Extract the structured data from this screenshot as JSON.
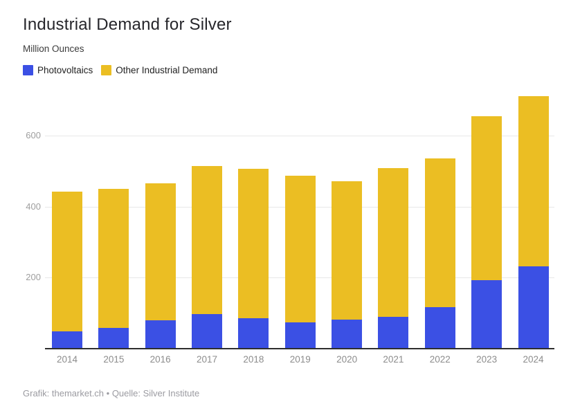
{
  "header": {
    "title": "Industrial Demand for Silver",
    "subtitle": "Million Ounces"
  },
  "legend": {
    "items": [
      {
        "label": "Photovoltaics",
        "color": "#3B50E4"
      },
      {
        "label": "Other Industrial Demand",
        "color": "#EBBE23"
      }
    ]
  },
  "chart_data": {
    "type": "bar",
    "stacked": true,
    "title": "Industrial Demand for Silver",
    "ylabel": "Million Ounces",
    "xlabel": "",
    "categories": [
      "2014",
      "2015",
      "2016",
      "2017",
      "2018",
      "2019",
      "2020",
      "2021",
      "2022",
      "2023",
      "2024"
    ],
    "series": [
      {
        "name": "Photovoltaics",
        "color": "#3B50E4",
        "values": [
          48,
          58,
          80,
          98,
          86,
          74,
          81,
          89,
          116,
          193,
          231
        ]
      },
      {
        "name": "Other Industrial Demand",
        "color": "#EBBE23",
        "values": [
          394,
          392,
          386,
          416,
          420,
          413,
          390,
          420,
          420,
          461,
          480
        ]
      }
    ],
    "totals": [
      442,
      450,
      466,
      514,
      506,
      487,
      471,
      509,
      536,
      654,
      711
    ],
    "yticks": [
      200,
      400,
      600
    ],
    "ylim": [
      0,
      730
    ],
    "grid": true,
    "legend_position": "top-left"
  },
  "footer": {
    "credit": "Grafik: themarket.ch • Quelle: Silver Institute"
  }
}
